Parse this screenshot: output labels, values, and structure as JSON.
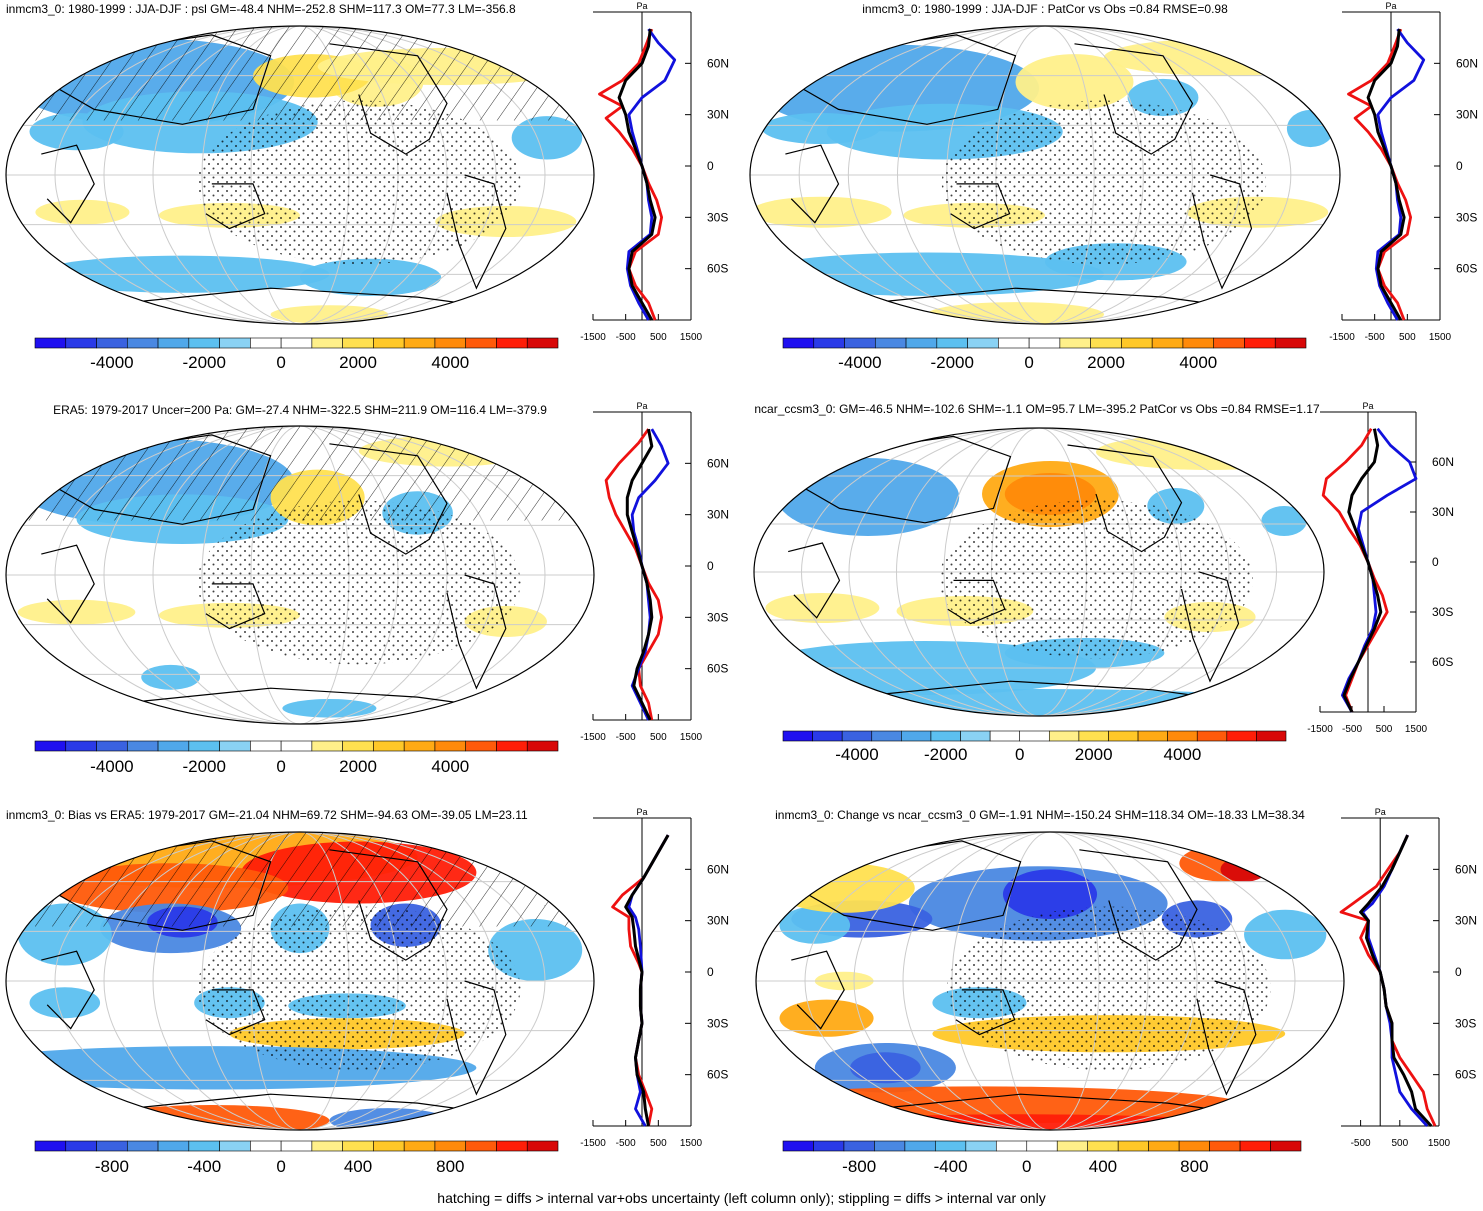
{
  "footnote": "hatching = diffs > internal var+obs uncertainty (left column only); stippling = diffs > internal var only",
  "palette": [
    "#1f10f0",
    "#2a3ae8",
    "#3a62e0",
    "#4a88e2",
    "#50a8ea",
    "#5cc0f0",
    "#8ad2f4",
    "#ffffff",
    "#ffffff",
    "#fff08a",
    "#ffe050",
    "#ffc828",
    "#ffaa14",
    "#ff8a0a",
    "#ff5a0a",
    "#ff1e08",
    "#d80808"
  ],
  "line_colors": {
    "red": "#ee1111",
    "blue": "#1111dd",
    "black": "#000000"
  },
  "chart_data": [
    {
      "id": "p1",
      "type": "map_with_zonal_profile",
      "title": "inmcm3_0: 1980-1999 : JJA-DJF : psl GM=-48.4 NHM=-252.8 SHM=117.3 OM=77.3 LM=-356.8",
      "colorbar": {
        "ticks": [
          "-4000",
          "-2000",
          "0",
          "2000",
          "4000"
        ]
      },
      "profile": {
        "units": "Pa",
        "xlim": [
          -1500,
          1500
        ],
        "xticks": [
          "-1500",
          "-500",
          "500",
          "1500"
        ],
        "lat_ticks": [
          "60N",
          "30N",
          "0",
          "30S",
          "60S"
        ]
      },
      "hatching": true,
      "stippling": true
    },
    {
      "id": "p2",
      "type": "map_with_zonal_profile",
      "title": "inmcm3_0: 1980-1999 : JJA-DJF : PatCor vs Obs =0.84 RMSE=0.98",
      "colorbar": {
        "ticks": [
          "-4000",
          "-2000",
          "0",
          "2000",
          "4000"
        ]
      },
      "profile": {
        "units": "Pa",
        "xlim": [
          -1500,
          1500
        ],
        "xticks": [
          "-1500",
          "-500",
          "500",
          "1500"
        ],
        "lat_ticks": [
          "60N",
          "30N",
          "0",
          "30S",
          "60S"
        ]
      },
      "hatching": false,
      "stippling": true
    },
    {
      "id": "p3",
      "type": "map_with_zonal_profile",
      "title": "ERA5: 1979-2017 Uncer=200 Pa: GM=-27.4 NHM=-322.5 SHM=211.9 OM=116.4 LM=-379.9",
      "colorbar": {
        "ticks": [
          "-4000",
          "-2000",
          "0",
          "2000",
          "4000"
        ]
      },
      "profile": {
        "units": "Pa",
        "xlim": [
          -1500,
          1500
        ],
        "xticks": [
          "-1500",
          "-500",
          "500",
          "1500"
        ],
        "lat_ticks": [
          "60N",
          "30N",
          "0",
          "30S",
          "60S"
        ]
      },
      "hatching": true,
      "stippling": true
    },
    {
      "id": "p4",
      "type": "map_with_zonal_profile",
      "title": "ncar_ccsm3_0: GM=-46.5 NHM=-102.6 SHM=-1.1 OM=95.7 LM=-395.2 PatCor vs Obs =0.84 RMSE=1.17",
      "colorbar": {
        "ticks": [
          "-4000",
          "-2000",
          "0",
          "2000",
          "4000"
        ]
      },
      "profile": {
        "units": "Pa",
        "xlim": [
          -1500,
          1500
        ],
        "xticks": [
          "-1500",
          "-500",
          "500",
          "1500"
        ],
        "lat_ticks": [
          "60N",
          "30N",
          "0",
          "30S",
          "60S"
        ]
      },
      "hatching": false,
      "stippling": true
    },
    {
      "id": "p5",
      "type": "map_with_zonal_profile",
      "title": "inmcm3_0: Bias vs ERA5: 1979-2017 GM=-21.04 NHM=69.72 SHM=-94.63 OM=-39.05 LM=23.11",
      "colorbar": {
        "ticks": [
          "-800",
          "-400",
          "0",
          "400",
          "800"
        ]
      },
      "profile": {
        "units": "Pa",
        "xlim": [
          -1500,
          1500
        ],
        "xticks": [
          "-1500",
          "-500",
          "500",
          "1500"
        ],
        "lat_ticks": [
          "60N",
          "30N",
          "0",
          "30S",
          "60S"
        ]
      },
      "hatching": true,
      "stippling": true
    },
    {
      "id": "p6",
      "type": "map_with_zonal_profile",
      "title": "inmcm3_0: Change vs ncar_ccsm3_0 GM=-1.91 NHM=-150.24 SHM=118.34 OM=-18.33 LM=38.34",
      "colorbar": {
        "ticks": [
          "-800",
          "-400",
          "0",
          "400",
          "800"
        ]
      },
      "profile": {
        "units": "Pa",
        "xlim": [
          -1000,
          1500
        ],
        "xticks": [
          "-500",
          "500",
          "1500"
        ],
        "lat_ticks": [
          "60N",
          "30N",
          "0",
          "30S",
          "60S"
        ]
      },
      "hatching": false,
      "stippling": true
    }
  ]
}
